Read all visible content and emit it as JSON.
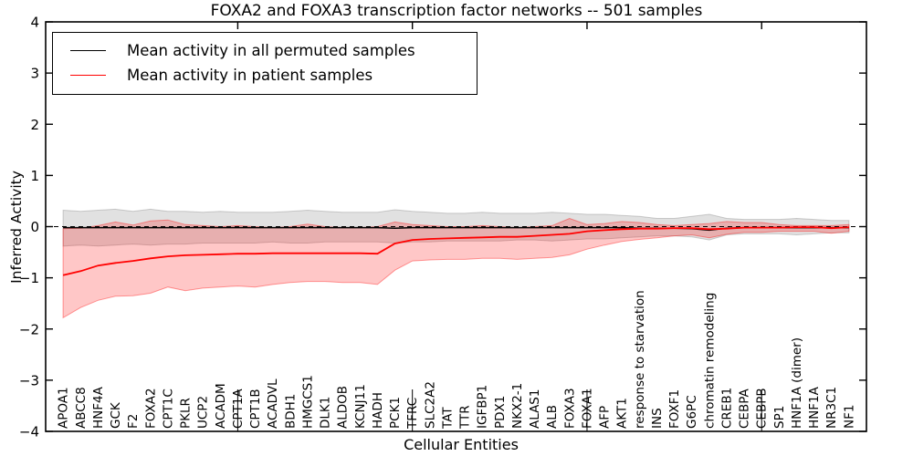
{
  "title": "FOXA2 and FOXA3 transcription factor networks -- 501 samples",
  "legend": {
    "entries": [
      {
        "label": "Mean activity in all permuted samples",
        "color": "#000000"
      },
      {
        "label": "Mean activity in patient samples",
        "color": "#ff0000"
      }
    ]
  },
  "chart_data": {
    "type": "line",
    "title": "FOXA2 and FOXA3 transcription factor networks -- 501 samples",
    "xlabel": "Cellular Entities",
    "ylabel": "Inferred Activity",
    "ylim": [
      -4,
      4
    ],
    "yticks": [
      4,
      3,
      2,
      1,
      0,
      -1,
      -2,
      -3,
      -4
    ],
    "xticks_at_indices": [
      10,
      20,
      30,
      40
    ],
    "grid": false,
    "legend_position": "upper left",
    "zero_line": true,
    "categories": [
      "APOA1",
      "ABCC8",
      "HNF4A",
      "GCK",
      "F2",
      "FOXA2",
      "CPT1C",
      "PKLR",
      "UCP2",
      "ACADM",
      "CPT1A",
      "CPT1B",
      "ACADVL",
      "BDH1",
      "HMGCS1",
      "DLK1",
      "ALDOB",
      "KCNJ11",
      "HADH",
      "PCK1",
      "TFRC",
      "SLC2A2",
      "TAT",
      "TTR",
      "IGFBP1",
      "PDX1",
      "NKX2-1",
      "ALAS1",
      "ALB",
      "FOXA3",
      "FOXA1",
      "AFP",
      "AKT1",
      "response to starvation",
      "INS",
      "FOXF1",
      "G6PC",
      "chromatin remodeling",
      "CREB1",
      "CEBPA",
      "CEBPB",
      "SP1",
      "HNF1A (dimer)",
      "HNF1A",
      "NR3C1",
      "NF1"
    ],
    "series": [
      {
        "name": "Mean activity in all permuted samples",
        "color": "#000000",
        "values": [
          -0.02,
          -0.02,
          -0.02,
          -0.02,
          -0.02,
          -0.02,
          -0.02,
          -0.02,
          -0.02,
          -0.02,
          -0.02,
          -0.02,
          -0.02,
          -0.02,
          -0.02,
          -0.02,
          -0.02,
          -0.02,
          -0.02,
          -0.03,
          -0.02,
          -0.02,
          -0.02,
          -0.02,
          -0.02,
          -0.02,
          -0.02,
          -0.02,
          -0.02,
          -0.02,
          -0.02,
          -0.02,
          -0.02,
          -0.03,
          -0.03,
          -0.03,
          -0.04,
          -0.07,
          -0.03,
          -0.02,
          -0.02,
          -0.02,
          -0.02,
          -0.02,
          -0.02,
          -0.02
        ]
      },
      {
        "name": "Mean activity in patient samples",
        "color": "#ff0000",
        "values": [
          -0.95,
          -0.87,
          -0.76,
          -0.71,
          -0.67,
          -0.62,
          -0.58,
          -0.56,
          -0.55,
          -0.54,
          -0.53,
          -0.53,
          -0.52,
          -0.52,
          -0.52,
          -0.52,
          -0.52,
          -0.52,
          -0.53,
          -0.33,
          -0.26,
          -0.24,
          -0.23,
          -0.22,
          -0.21,
          -0.2,
          -0.2,
          -0.18,
          -0.16,
          -0.14,
          -0.09,
          -0.07,
          -0.05,
          -0.04,
          -0.04,
          -0.03,
          -0.03,
          -0.05,
          -0.04,
          -0.02,
          -0.02,
          -0.02,
          -0.01,
          -0.01,
          -0.03,
          -0.01
        ]
      }
    ],
    "bands": [
      {
        "name": "permuted samples spread",
        "fill": "rgba(90,90,90,0.18)",
        "edge": "rgba(90,90,90,0.28)",
        "upper": [
          0.32,
          0.3,
          0.32,
          0.34,
          0.3,
          0.34,
          0.3,
          0.3,
          0.28,
          0.3,
          0.28,
          0.28,
          0.28,
          0.3,
          0.32,
          0.3,
          0.28,
          0.28,
          0.28,
          0.33,
          0.3,
          0.28,
          0.26,
          0.26,
          0.28,
          0.26,
          0.26,
          0.26,
          0.28,
          0.26,
          0.24,
          0.24,
          0.22,
          0.2,
          0.16,
          0.16,
          0.2,
          0.24,
          0.16,
          0.14,
          0.14,
          0.14,
          0.16,
          0.14,
          0.12,
          0.12
        ],
        "lower": [
          -0.38,
          -0.36,
          -0.38,
          -0.36,
          -0.34,
          -0.36,
          -0.34,
          -0.34,
          -0.32,
          -0.32,
          -0.32,
          -0.32,
          -0.3,
          -0.32,
          -0.32,
          -0.3,
          -0.3,
          -0.3,
          -0.3,
          -0.32,
          -0.3,
          -0.3,
          -0.28,
          -0.28,
          -0.28,
          -0.28,
          -0.26,
          -0.26,
          -0.28,
          -0.26,
          -0.24,
          -0.24,
          -0.22,
          -0.2,
          -0.18,
          -0.18,
          -0.2,
          -0.26,
          -0.16,
          -0.14,
          -0.14,
          -0.14,
          -0.16,
          -0.14,
          -0.12,
          -0.12
        ]
      },
      {
        "name": "patient samples spread",
        "fill": "rgba(255,0,0,0.22)",
        "edge": "rgba(255,0,0,0.38)",
        "upper": [
          -0.04,
          -0.03,
          0.02,
          0.09,
          0.03,
          0.11,
          0.13,
          0.04,
          0.02,
          0.0,
          0.02,
          0.0,
          -0.02,
          0.0,
          0.05,
          0.0,
          -0.02,
          -0.02,
          0.0,
          0.09,
          0.04,
          0.02,
          0.0,
          0.0,
          0.02,
          0.0,
          -0.02,
          0.0,
          0.02,
          0.16,
          0.04,
          0.06,
          0.1,
          0.08,
          0.04,
          0.02,
          0.04,
          0.06,
          0.1,
          0.08,
          0.08,
          0.04,
          0.02,
          0.02,
          0.02,
          0.04
        ],
        "lower": [
          -1.78,
          -1.58,
          -1.44,
          -1.36,
          -1.35,
          -1.3,
          -1.18,
          -1.25,
          -1.2,
          -1.18,
          -1.16,
          -1.18,
          -1.13,
          -1.09,
          -1.07,
          -1.07,
          -1.09,
          -1.09,
          -1.13,
          -0.85,
          -0.67,
          -0.65,
          -0.64,
          -0.64,
          -0.62,
          -0.62,
          -0.64,
          -0.62,
          -0.6,
          -0.55,
          -0.44,
          -0.36,
          -0.29,
          -0.25,
          -0.22,
          -0.18,
          -0.16,
          -0.22,
          -0.15,
          -0.11,
          -0.11,
          -0.09,
          -0.09,
          -0.09,
          -0.13,
          -0.09
        ]
      }
    ]
  }
}
